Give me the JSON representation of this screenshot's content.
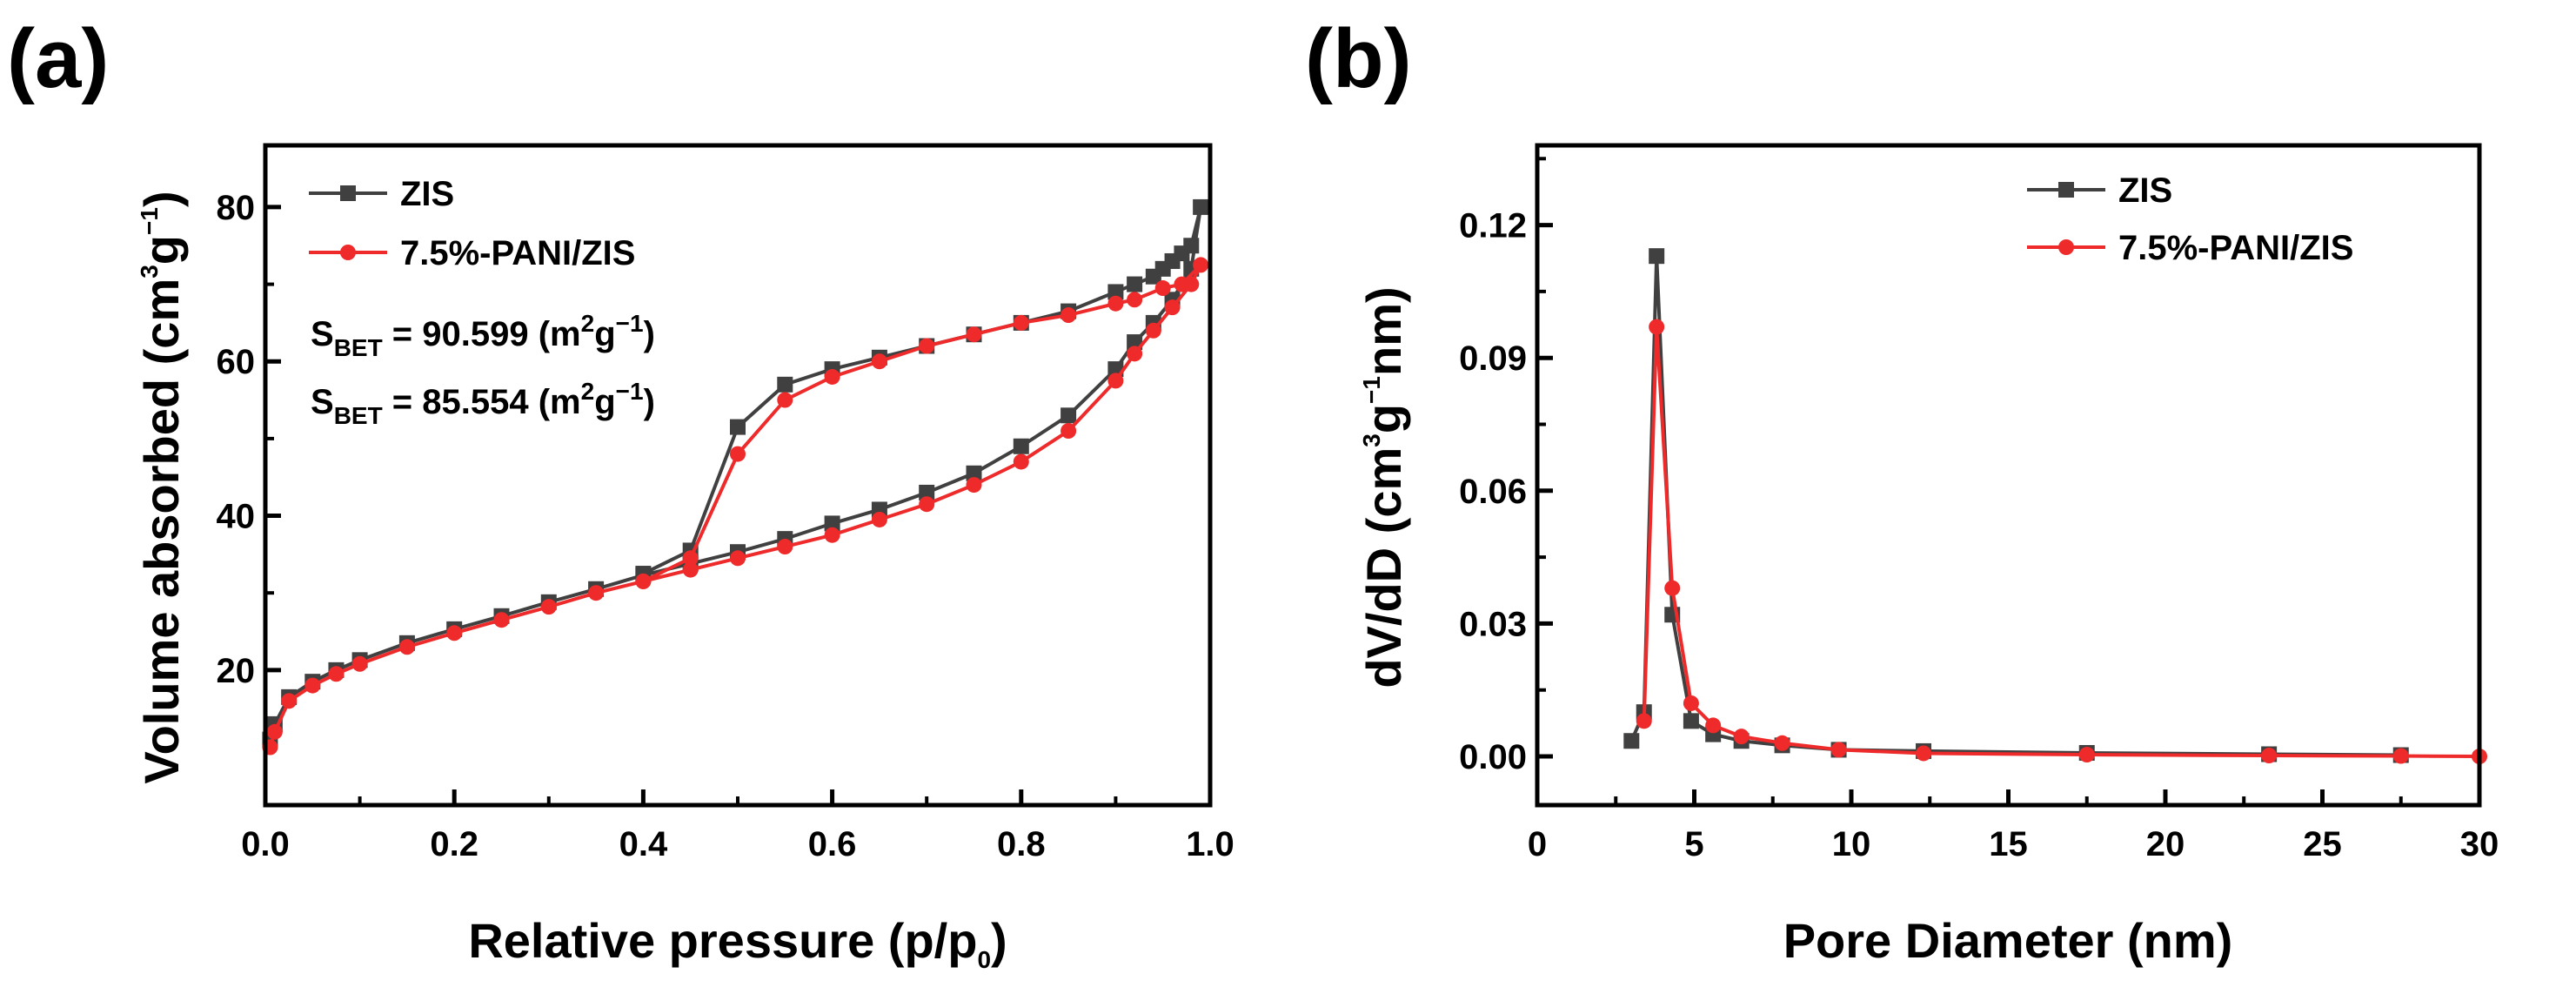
{
  "panel_labels": [
    "(a)",
    "(b)"
  ],
  "chart_data": [
    {
      "type": "line",
      "panel": "(a)",
      "xlabel": {
        "main": "Relative pressure (p/p",
        "sub": "0",
        "end": ")"
      },
      "ylabel": {
        "main": "Volume absorbed (cm",
        "sup1": "3",
        "mid": "g",
        "sup2": "−1",
        "end": ")"
      },
      "xlim": [
        0,
        1.0
      ],
      "ylim": [
        2.5,
        88
      ],
      "xticks": [
        "0.0",
        "0.2",
        "0.4",
        "0.6",
        "0.8",
        "1.0"
      ],
      "xtick_values": [
        0,
        0.2,
        0.4,
        0.6,
        0.8,
        1.0
      ],
      "xminor_step": 0.1,
      "yticks": [
        "20",
        "40",
        "60",
        "80"
      ],
      "ytick_values": [
        20,
        40,
        60,
        80
      ],
      "yminor_step": 10,
      "legend_placement": "top-left",
      "annotations": [
        {
          "s": "S",
          "sub": "BET",
          "text": " = 90.599 (m",
          "sup1": "2",
          "mid": "g",
          "sup2": "−1",
          "end": ")"
        },
        {
          "s": "S",
          "sub": "BET",
          "text": " = 85.554 (m",
          "sup1": "2",
          "mid": "g",
          "sup2": "−1",
          "end": ")"
        }
      ],
      "series": [
        {
          "name": "ZIS",
          "color": "#404040",
          "marker": "square",
          "x": [
            0.005,
            0.01,
            0.025,
            0.05,
            0.075,
            0.1,
            0.15,
            0.2,
            0.25,
            0.3,
            0.35,
            0.4,
            0.45,
            0.5,
            0.55,
            0.6,
            0.65,
            0.7,
            0.75,
            0.8,
            0.85,
            0.9,
            0.92,
            0.94,
            0.96,
            0.98,
            0.99,
            0.98,
            0.97,
            0.96,
            0.95,
            0.94,
            0.92,
            0.9,
            0.85,
            0.8,
            0.75,
            0.7,
            0.65,
            0.6,
            0.55,
            0.5,
            0.45,
            0.4
          ],
          "y": [
            11,
            13,
            16.5,
            18.5,
            20,
            21.3,
            23.5,
            25.3,
            27,
            28.8,
            30.5,
            32.3,
            33.8,
            35.3,
            37,
            39,
            40.8,
            43,
            45.5,
            49,
            53,
            59,
            62.5,
            65,
            68,
            72,
            80,
            75,
            74,
            73,
            72,
            71,
            70,
            69,
            66.5,
            65,
            63.5,
            62,
            60.5,
            59,
            57,
            51.5,
            35.5,
            32.5
          ]
        },
        {
          "name": "7.5%-PANI/ZIS",
          "color": "#ee2a2a",
          "marker": "circle",
          "x": [
            0.005,
            0.01,
            0.025,
            0.05,
            0.075,
            0.1,
            0.15,
            0.2,
            0.25,
            0.3,
            0.35,
            0.4,
            0.45,
            0.5,
            0.55,
            0.6,
            0.65,
            0.7,
            0.75,
            0.8,
            0.85,
            0.9,
            0.92,
            0.94,
            0.96,
            0.98,
            0.99,
            0.97,
            0.95,
            0.92,
            0.9,
            0.85,
            0.8,
            0.75,
            0.7,
            0.65,
            0.6,
            0.55,
            0.5,
            0.45,
            0.4
          ],
          "y": [
            10,
            12,
            16,
            18,
            19.5,
            20.8,
            23,
            24.8,
            26.5,
            28.2,
            30,
            31.5,
            33,
            34.5,
            36,
            37.5,
            39.5,
            41.5,
            44,
            47,
            51,
            57.5,
            61,
            64,
            67,
            70,
            72.5,
            70,
            69.5,
            68,
            67.5,
            66,
            65,
            63.5,
            62,
            60,
            58,
            55,
            48,
            34.5,
            31.5
          ]
        }
      ]
    },
    {
      "type": "line",
      "panel": "(b)",
      "xlabel": {
        "main": "Pore Diameter (nm)"
      },
      "ylabel": {
        "main": "dV/dD (cm",
        "sup1": "3",
        "mid": "g",
        "sup2": "−1",
        "end": "nm)"
      },
      "xlim": [
        0,
        30
      ],
      "ylim": [
        -0.011,
        0.138
      ],
      "xticks": [
        "0",
        "5",
        "10",
        "15",
        "20",
        "25",
        "30"
      ],
      "xtick_values": [
        0,
        5,
        10,
        15,
        20,
        25,
        30
      ],
      "xminor_step": 2.5,
      "yticks": [
        "0.00",
        "0.03",
        "0.06",
        "0.09",
        "0.12"
      ],
      "ytick_values": [
        0,
        0.03,
        0.06,
        0.09,
        0.12
      ],
      "yminor_step": 0.015,
      "legend_placement": "top-right",
      "series": [
        {
          "name": "ZIS",
          "color": "#404040",
          "marker": "square",
          "x": [
            3.0,
            3.4,
            3.8,
            4.3,
            4.9,
            5.6,
            6.5,
            7.8,
            9.6,
            12.3,
            17.5,
            23.3,
            27.5
          ],
          "y": [
            0.0035,
            0.01,
            0.113,
            0.032,
            0.008,
            0.005,
            0.0035,
            0.0025,
            0.0015,
            0.0012,
            0.0008,
            0.0005,
            0.0003
          ]
        },
        {
          "name": "7.5%-PANI/ZIS",
          "color": "#ee2a2a",
          "marker": "circle",
          "x": [
            3.4,
            3.8,
            4.3,
            4.9,
            5.6,
            6.5,
            7.8,
            9.6,
            12.3,
            17.5,
            23.3,
            27.5,
            30
          ],
          "y": [
            0.008,
            0.097,
            0.038,
            0.012,
            0.007,
            0.0045,
            0.003,
            0.0015,
            0.0007,
            0.0004,
            0.0002,
            0.0001,
            0
          ]
        }
      ]
    }
  ]
}
